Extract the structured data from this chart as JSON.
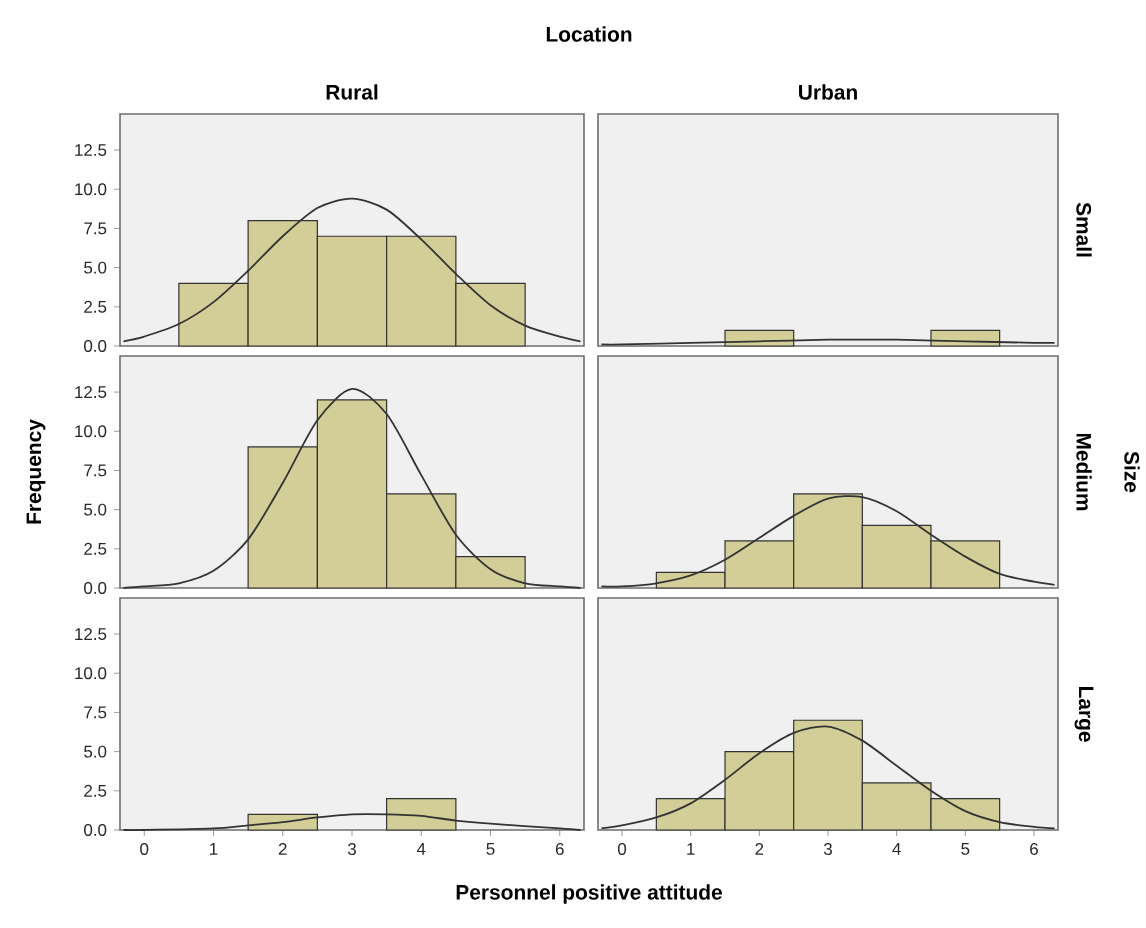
{
  "chart_data": [
    {
      "type": "histogram",
      "title": "Rural",
      "annotations": [
        "Location"
      ],
      "bins": [
        0.5,
        1.5,
        2.5,
        3.5,
        4.5,
        5.5
      ],
      "values": [
        4,
        8,
        7,
        7,
        4
      ],
      "color": "#d3ce97",
      "xlim": [
        -0.35,
        6.35
      ],
      "ylim": [
        0,
        14.8
      ],
      "yticks": [
        {
          "value": 0,
          "label": "0.0"
        },
        {
          "value": 2.5,
          "label": "2.5"
        },
        {
          "value": 5,
          "label": "5.0"
        },
        {
          "value": 7.5,
          "label": "7.5"
        },
        {
          "value": 10,
          "label": "10.0"
        },
        {
          "value": 12.5,
          "label": "12.5"
        }
      ],
      "tick_labels": "y",
      "series": [
        {
          "type": "line",
          "color": "#333333",
          "x": [
            -0.3,
            0,
            0.5,
            1,
            1.5,
            2,
            2.5,
            3,
            3.5,
            4,
            4.5,
            5,
            5.5,
            6,
            6.3
          ],
          "values": [
            0.3,
            0.6,
            1.4,
            2.8,
            4.8,
            7.0,
            8.8,
            9.4,
            8.7,
            6.8,
            4.6,
            2.6,
            1.3,
            0.6,
            0.3
          ]
        }
      ]
    },
    {
      "type": "histogram",
      "title": "Urban",
      "y2label": "Small",
      "bins": [
        1.5,
        2.5,
        3.5,
        4.5,
        5.5
      ],
      "values": [
        1,
        0,
        0,
        1
      ],
      "color": "#d3ce97",
      "xlim": [
        -0.35,
        6.35
      ],
      "ylim": [
        0,
        14.8
      ],
      "tick_labels": false,
      "series": [
        {
          "type": "line",
          "color": "#333333",
          "x": [
            -0.3,
            0,
            1,
            2,
            3,
            3.5,
            4,
            5,
            6,
            6.3
          ],
          "values": [
            0.1,
            0.1,
            0.2,
            0.3,
            0.4,
            0.4,
            0.4,
            0.3,
            0.2,
            0.2
          ]
        }
      ]
    },
    {
      "type": "histogram",
      "ylabel": "Frequency",
      "bins": [
        1.5,
        2.5,
        3.5,
        4.5,
        5.5
      ],
      "values": [
        9,
        12,
        6,
        2
      ],
      "color": "#d3ce97",
      "xlim": [
        -0.35,
        6.35
      ],
      "ylim": [
        0,
        14.8
      ],
      "yticks": [
        {
          "value": 0,
          "label": "0.0"
        },
        {
          "value": 2.5,
          "label": "2.5"
        },
        {
          "value": 5,
          "label": "5.0"
        },
        {
          "value": 7.5,
          "label": "7.5"
        },
        {
          "value": 10,
          "label": "10.0"
        },
        {
          "value": 12.5,
          "label": "12.5"
        }
      ],
      "tick_labels": "y",
      "series": [
        {
          "type": "line",
          "color": "#333333",
          "x": [
            -0.3,
            0,
            0.5,
            1,
            1.5,
            2,
            2.5,
            3,
            3.5,
            4,
            4.5,
            5,
            5.5,
            6,
            6.3
          ],
          "values": [
            0,
            0.1,
            0.3,
            1.1,
            3.1,
            6.7,
            10.7,
            12.7,
            11.1,
            7.2,
            3.4,
            1.2,
            0.3,
            0.1,
            0
          ]
        }
      ]
    },
    {
      "type": "histogram",
      "y2label": "Medium",
      "annotations": [
        "Size"
      ],
      "bins": [
        0.5,
        1.5,
        2.5,
        3.5,
        4.5,
        5.5
      ],
      "values": [
        1,
        3,
        6,
        4,
        3
      ],
      "color": "#d3ce97",
      "xlim": [
        -0.35,
        6.35
      ],
      "ylim": [
        0,
        14.8
      ],
      "tick_labels": false,
      "series": [
        {
          "type": "line",
          "color": "#333333",
          "x": [
            -0.3,
            0,
            0.5,
            1,
            1.5,
            2,
            2.5,
            3,
            3.5,
            4,
            4.5,
            5,
            5.5,
            6,
            6.3
          ],
          "values": [
            0.1,
            0.1,
            0.3,
            0.8,
            1.8,
            3.2,
            4.6,
            5.7,
            5.8,
            4.9,
            3.4,
            2.0,
            0.9,
            0.4,
            0.2
          ]
        }
      ]
    },
    {
      "type": "histogram",
      "xlabel": "Personnel positive attitude",
      "bins": [
        1.5,
        2.5,
        3.5,
        4.5
      ],
      "values": [
        1,
        0,
        2
      ],
      "color": "#d3ce97",
      "xlim": [
        -0.35,
        6.35
      ],
      "ylim": [
        0,
        14.8
      ],
      "xticks": [
        0,
        1,
        2,
        3,
        4,
        5,
        6
      ],
      "yticks": [
        {
          "value": 0,
          "label": "0.0"
        },
        {
          "value": 2.5,
          "label": "2.5"
        },
        {
          "value": 5,
          "label": "5.0"
        },
        {
          "value": 7.5,
          "label": "7.5"
        },
        {
          "value": 10,
          "label": "10.0"
        },
        {
          "value": 12.5,
          "label": "12.5"
        }
      ],
      "series": [
        {
          "type": "line",
          "color": "#333333",
          "x": [
            -0.3,
            0,
            1,
            1.5,
            2,
            2.5,
            3,
            3.5,
            4,
            4.5,
            5,
            6,
            6.3
          ],
          "values": [
            0,
            0,
            0.1,
            0.3,
            0.5,
            0.8,
            1.0,
            1.0,
            0.9,
            0.6,
            0.4,
            0.1,
            0
          ]
        }
      ]
    },
    {
      "type": "histogram",
      "y2label": "Large",
      "bins": [
        0.5,
        1.5,
        2.5,
        3.5,
        4.5,
        5.5
      ],
      "values": [
        2,
        5,
        7,
        3,
        2
      ],
      "color": "#d3ce97",
      "xlim": [
        -0.35,
        6.35
      ],
      "ylim": [
        0,
        14.8
      ],
      "xticks": [
        0,
        1,
        2,
        3,
        4,
        5,
        6
      ],
      "tick_labels": "x",
      "series": [
        {
          "type": "line",
          "color": "#333333",
          "x": [
            -0.3,
            0,
            0.5,
            1,
            1.5,
            2,
            2.5,
            3,
            3.5,
            4,
            4.5,
            5,
            5.5,
            6,
            6.3
          ],
          "values": [
            0.1,
            0.3,
            0.8,
            1.7,
            3.2,
            4.9,
            6.2,
            6.6,
            5.7,
            4.1,
            2.5,
            1.2,
            0.5,
            0.2,
            0.1
          ]
        }
      ]
    }
  ]
}
